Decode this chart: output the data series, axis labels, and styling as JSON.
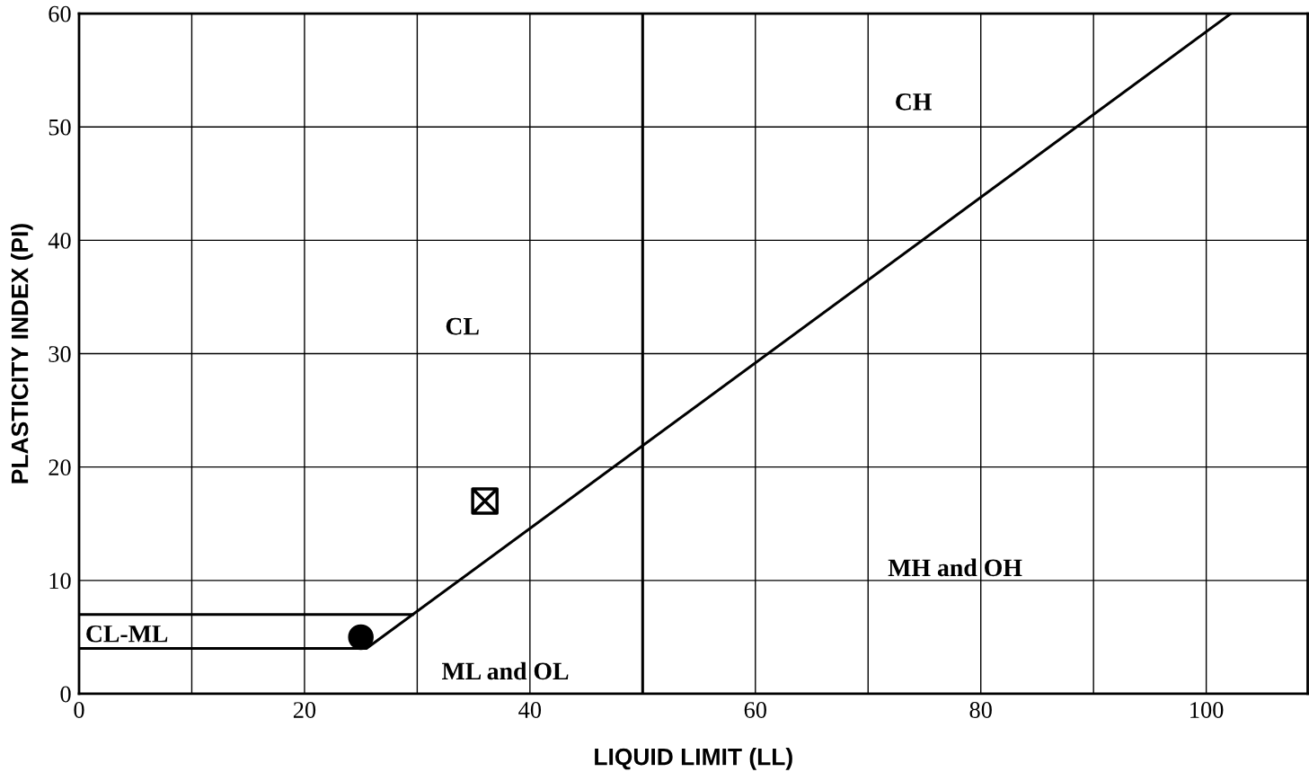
{
  "chart_data": {
    "type": "line",
    "xlabel": "LIQUID LIMIT (LL)",
    "ylabel": "PLASTICITY INDEX (PI)",
    "xlim": [
      0,
      109
    ],
    "ylim": [
      0,
      60
    ],
    "xticks": [
      0,
      {
        "value": 10,
        "label": null
      },
      20,
      {
        "value": 30,
        "label": null
      },
      40,
      {
        "value": 50,
        "label": null
      },
      60,
      {
        "value": 70,
        "label": null
      },
      80,
      {
        "value": 90,
        "label": null
      },
      100
    ],
    "yticks": [
      0,
      10,
      20,
      30,
      40,
      50,
      60
    ],
    "grid": true,
    "series": [
      {
        "color": "#000000",
        "x": [
          0,
          25.5,
          102.2
        ],
        "values": [
          4,
          4,
          60
        ],
        "marker": "none"
      },
      {
        "color": "#000000",
        "x": [
          0,
          29.6
        ],
        "values": [
          7,
          7
        ],
        "marker": "none"
      },
      {
        "type": "scatter",
        "color": "#000000",
        "x": [
          25
        ],
        "values": [
          5
        ],
        "marker": "circle"
      },
      {
        "type": "scatter",
        "color": "#000000",
        "x": [
          36
        ],
        "values": [
          17
        ],
        "marker": "square"
      }
    ],
    "ref_lines": [
      {
        "axis": "x",
        "value": 50,
        "color": "#000000"
      }
    ],
    "annotations": [
      "CH",
      "CL",
      "MH and OH",
      "ML and OL",
      "CL-ML"
    ]
  }
}
